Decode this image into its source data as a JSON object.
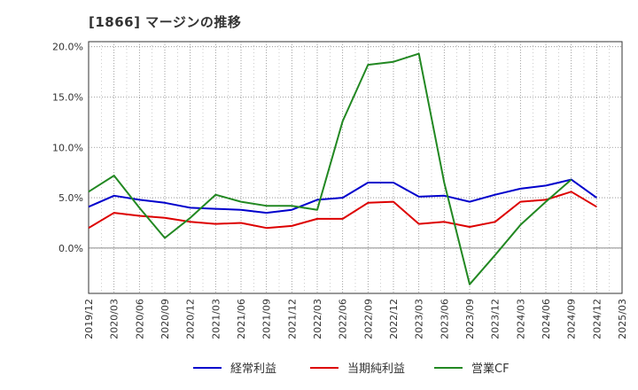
{
  "chart_data": {
    "type": "line",
    "title": "[1866]  マージンの推移",
    "x": [
      "2019/12",
      "2020/03",
      "2020/06",
      "2020/09",
      "2020/12",
      "2021/03",
      "2021/06",
      "2021/09",
      "2021/12",
      "2022/03",
      "2022/06",
      "2022/09",
      "2022/12",
      "2023/03",
      "2023/06",
      "2023/09",
      "2023/12",
      "2024/03",
      "2024/06",
      "2024/09",
      "2024/12",
      "2025/03"
    ],
    "y_ticks": [
      "20.0%",
      "15.0%",
      "10.0%",
      "5.0%",
      "0.0%"
    ],
    "ylim": [
      -4.5,
      20.5
    ],
    "series": [
      {
        "name": "経常利益",
        "color": "#0000cc",
        "values": [
          4.1,
          5.2,
          4.8,
          4.5,
          4.0,
          3.9,
          3.8,
          3.5,
          3.8,
          4.8,
          5.0,
          6.5,
          6.5,
          5.1,
          5.2,
          4.6,
          5.3,
          5.9,
          6.2,
          6.8,
          5.0,
          null
        ]
      },
      {
        "name": "当期純利益",
        "color": "#dd0000",
        "values": [
          2.0,
          3.5,
          3.2,
          3.0,
          2.6,
          2.4,
          2.5,
          2.0,
          2.2,
          2.9,
          2.9,
          4.5,
          4.6,
          2.4,
          2.6,
          2.1,
          2.6,
          4.6,
          4.8,
          5.6,
          4.1,
          null
        ]
      },
      {
        "name": "営業CF",
        "color": "#228822",
        "values": [
          5.6,
          7.2,
          4.0,
          1.0,
          3.0,
          5.3,
          4.6,
          4.2,
          4.2,
          3.8,
          12.6,
          18.2,
          18.5,
          19.3,
          6.5,
          -3.6,
          -0.7,
          2.3,
          4.6,
          6.8,
          null,
          null
        ]
      }
    ],
    "grid": true,
    "legend_position": "bottom"
  }
}
